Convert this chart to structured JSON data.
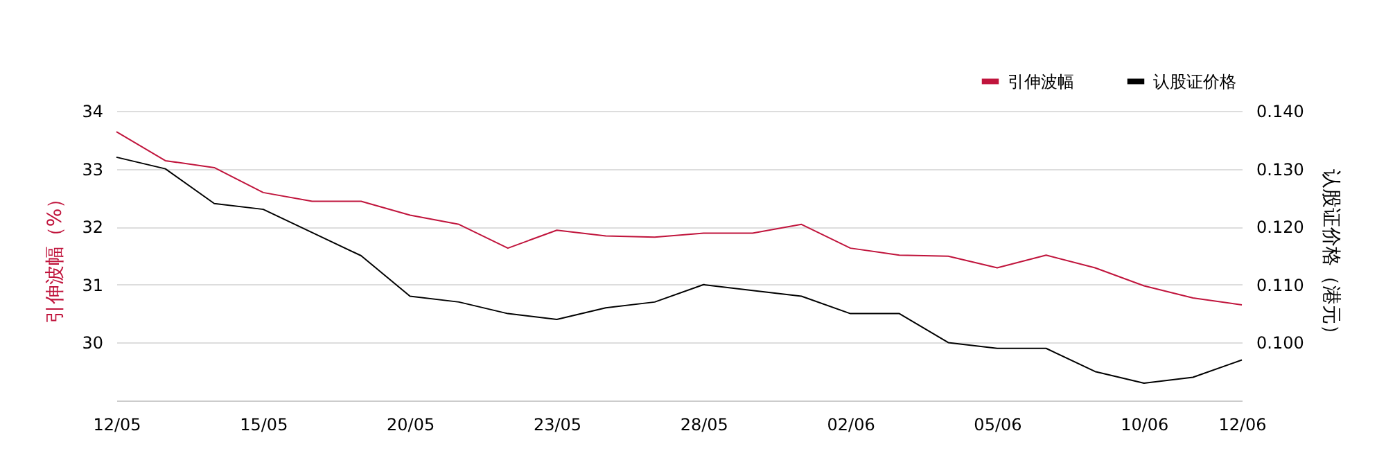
{
  "chart_data": {
    "type": "line",
    "ylabel": "引伸波幅（%）",
    "y2label": "认股证价格（港元）",
    "categories": [
      "12/05",
      null,
      null,
      "15/05",
      null,
      null,
      "20/05",
      null,
      null,
      "23/05",
      null,
      null,
      "28/05",
      null,
      null,
      "02/06",
      null,
      null,
      "05/06",
      null,
      null,
      "10/06",
      null,
      "12/06"
    ],
    "series": [
      {
        "name": "引伸波幅",
        "color": "#c0143c",
        "values": [
          33.64,
          33.14,
          33.02,
          32.59,
          32.44,
          32.44,
          32.2,
          32.04,
          31.63,
          31.94,
          31.84,
          31.82,
          31.89,
          31.89,
          32.04,
          31.63,
          31.51,
          31.49,
          31.29,
          31.51,
          31.29,
          30.98,
          30.77,
          30.65
        ]
      },
      {
        "name": "认股证价格",
        "color": "#000000",
        "axis": "y2",
        "values": [
          0.132,
          0.13,
          0.124,
          0.123,
          0.119,
          0.115,
          0.108,
          0.107,
          0.105,
          0.104,
          0.106,
          0.107,
          0.11,
          0.109,
          0.108,
          0.105,
          0.105,
          0.1,
          0.099,
          0.099,
          0.095,
          0.093,
          0.094,
          0.097
        ]
      }
    ],
    "ylim": [
      29,
      34
    ],
    "yticks": [
      30,
      31,
      32,
      33,
      34
    ],
    "y2lim": [
      0.09,
      0.14
    ],
    "y2ticks": [
      {
        "value": 0.1,
        "label": "0.100"
      },
      {
        "value": 0.11,
        "label": "0.110"
      },
      {
        "value": 0.12,
        "label": "0.120"
      },
      {
        "value": 0.13,
        "label": "0.130"
      },
      {
        "value": 0.14,
        "label": "0.140"
      }
    ],
    "grid": "y",
    "legend": "top right",
    "marker": "none",
    "line_style": "solid"
  }
}
